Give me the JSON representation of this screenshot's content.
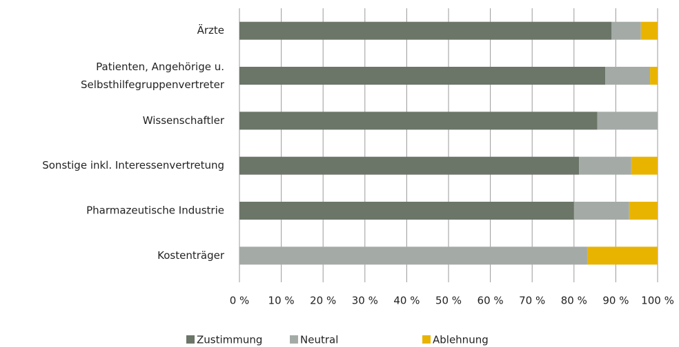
{
  "chart_data": {
    "type": "stacked_barh",
    "categories": [
      "Ärzte",
      "Patienten, Angehörige u.\nSelbsthilfegruppenvertreter",
      "Wissenschaftler",
      "Sonstige inkl. Interessenvertretung",
      "Pharmazeutische Industrie",
      "Kostenträger"
    ],
    "series": [
      {
        "name": "Zustimmung",
        "color": "#6b7568",
        "values": [
          89,
          87.5,
          85.6,
          81.2,
          80,
          0
        ]
      },
      {
        "name": "Neutral",
        "color": "#a4aba6",
        "values": [
          7,
          10.7,
          14.4,
          12.5,
          13.2,
          83.3
        ]
      },
      {
        "name": "Ablehnung",
        "color": "#e8b400",
        "values": [
          4,
          1.8,
          0,
          6.3,
          6.8,
          16.7
        ]
      }
    ],
    "xlim": [
      0,
      100
    ],
    "xticks": [
      {
        "value": 0,
        "label": "0 %"
      },
      {
        "value": 10,
        "label": "10 %"
      },
      {
        "value": 20,
        "label": "20 %"
      },
      {
        "value": 30,
        "label": "30 %"
      },
      {
        "value": 40,
        "label": "40 %"
      },
      {
        "value": 50,
        "label": "50 %"
      },
      {
        "value": 60,
        "label": "60 %"
      },
      {
        "value": 70,
        "label": "70 %"
      },
      {
        "value": 80,
        "label": "80 %"
      },
      {
        "value": 90,
        "label": "90 %"
      },
      {
        "value": 100,
        "label": "100 %"
      }
    ],
    "grid": true,
    "legend": "bottom"
  }
}
